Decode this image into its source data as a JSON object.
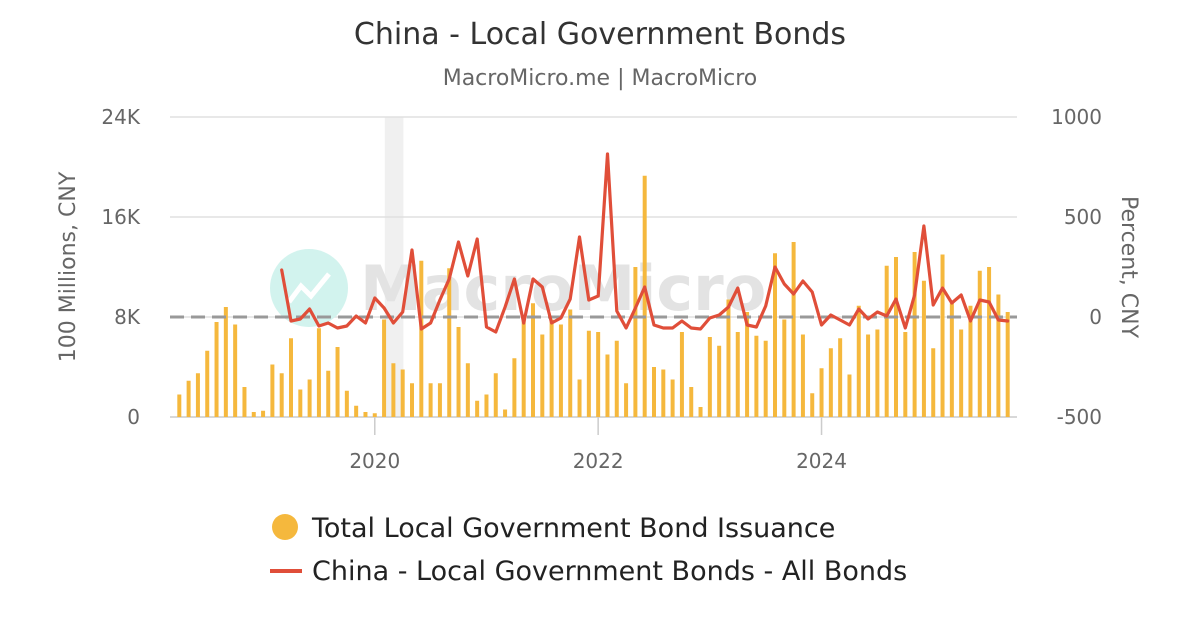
{
  "chart_data": {
    "type": "bar",
    "title": "China - Local Government Bonds",
    "subtitle": "MacroMicro.me | MacroMicro",
    "watermark": "MacroMicro",
    "xlabel": "",
    "ylabel_left": "100 Millions, CNY",
    "ylabel_right": "Percent, CNY",
    "ylim_left": [
      0,
      24000
    ],
    "ylim_right": [
      -500,
      1000
    ],
    "yticks_left": [
      0,
      8000,
      16000,
      24000
    ],
    "yticks_left_labels": [
      "0",
      "8K",
      "16K",
      "24K"
    ],
    "yticks_right": [
      -500,
      0,
      500,
      1000
    ],
    "yticks_right_labels": [
      "-500",
      "0",
      "500",
      "1000"
    ],
    "xlim": [
      "2018-03",
      "2025-10"
    ],
    "xticks": [
      "2020-01",
      "2022-01",
      "2024-01"
    ],
    "xtick_labels": [
      "2020",
      "2022",
      "2024"
    ],
    "grid": true,
    "legend_position": "bottom",
    "highlight_band": [
      "2020-01",
      "2020-03"
    ],
    "reference_line": {
      "axis": "right",
      "value": 0,
      "style": "dashed",
      "color": "#999999"
    },
    "colors": {
      "bars": "#f5b83d",
      "line": "#e04e39",
      "band": "#f0f0f0",
      "grid": "#e0e0e0"
    },
    "series": [
      {
        "name": "Total Local Government Bond Issuance",
        "type": "bar",
        "axis": "left",
        "x": [
          "2018-04",
          "2018-05",
          "2018-06",
          "2018-07",
          "2018-08",
          "2018-09",
          "2018-10",
          "2018-11",
          "2018-12",
          "2019-01",
          "2019-02",
          "2019-03",
          "2019-04",
          "2019-05",
          "2019-06",
          "2019-07",
          "2019-08",
          "2019-09",
          "2019-10",
          "2019-11",
          "2019-12",
          "2020-01",
          "2020-02",
          "2020-03",
          "2020-04",
          "2020-05",
          "2020-06",
          "2020-07",
          "2020-08",
          "2020-09",
          "2020-10",
          "2020-11",
          "2020-12",
          "2021-01",
          "2021-02",
          "2021-03",
          "2021-04",
          "2021-05",
          "2021-06",
          "2021-07",
          "2021-08",
          "2021-09",
          "2021-10",
          "2021-11",
          "2021-12",
          "2022-01",
          "2022-02",
          "2022-03",
          "2022-04",
          "2022-05",
          "2022-06",
          "2022-07",
          "2022-08",
          "2022-09",
          "2022-10",
          "2022-11",
          "2022-12",
          "2023-01",
          "2023-02",
          "2023-03",
          "2023-04",
          "2023-05",
          "2023-06",
          "2023-07",
          "2023-08",
          "2023-09",
          "2023-10",
          "2023-11",
          "2023-12",
          "2024-01",
          "2024-02",
          "2024-03",
          "2024-04",
          "2024-05",
          "2024-06",
          "2024-07",
          "2024-08",
          "2024-09",
          "2024-10",
          "2024-11",
          "2024-12",
          "2025-01",
          "2025-02",
          "2025-03",
          "2025-04",
          "2025-05",
          "2025-06",
          "2025-07",
          "2025-08",
          "2025-09"
        ],
        "values": [
          1800,
          2900,
          3500,
          5300,
          7600,
          8800,
          7400,
          2400,
          400,
          500,
          4200,
          3500,
          6300,
          2200,
          3000,
          7100,
          3700,
          5600,
          2100,
          900,
          400,
          300,
          7800,
          4300,
          3800,
          2700,
          12500,
          2700,
          2700,
          11900,
          7200,
          4300,
          1300,
          1800,
          3500,
          600,
          4700,
          7900,
          9100,
          6600,
          7800,
          7400,
          8600,
          3000,
          6900,
          6800,
          5000,
          6100,
          2700,
          12000,
          19300,
          4000,
          3800,
          3000,
          6800,
          2400,
          800,
          6400,
          5700,
          9400,
          6800,
          8400,
          6500,
          6100,
          13100,
          7800,
          14000,
          6600,
          1900,
          3900,
          5500,
          6300,
          3400,
          8900,
          6600,
          7000,
          12100,
          12800,
          6800,
          13200,
          10900,
          5500,
          13000,
          9100,
          7000,
          8900,
          11700,
          12000,
          9800,
          8400
        ]
      },
      {
        "name": "China - Local Government Bonds - All Bonds",
        "type": "line",
        "axis": "right",
        "x": [
          "2019-03",
          "2019-04",
          "2019-05",
          "2019-06",
          "2019-07",
          "2019-08",
          "2019-09",
          "2019-10",
          "2019-11",
          "2019-12",
          "2020-01",
          "2020-02",
          "2020-03",
          "2020-04",
          "2020-05",
          "2020-06",
          "2020-07",
          "2020-08",
          "2020-09",
          "2020-10",
          "2020-11",
          "2020-12",
          "2021-01",
          "2021-02",
          "2021-03",
          "2021-04",
          "2021-05",
          "2021-06",
          "2021-07",
          "2021-08",
          "2021-09",
          "2021-10",
          "2021-11",
          "2021-12",
          "2022-01",
          "2022-02",
          "2022-03",
          "2022-04",
          "2022-05",
          "2022-06",
          "2022-07",
          "2022-08",
          "2022-09",
          "2022-10",
          "2022-11",
          "2022-12",
          "2023-01",
          "2023-02",
          "2023-03",
          "2023-04",
          "2023-05",
          "2023-06",
          "2023-07",
          "2023-08",
          "2023-09",
          "2023-10",
          "2023-11",
          "2023-12",
          "2024-01",
          "2024-02",
          "2024-03",
          "2024-04",
          "2024-05",
          "2024-06",
          "2024-07",
          "2024-08",
          "2024-09",
          "2024-10",
          "2024-11",
          "2024-12",
          "2025-01",
          "2025-02",
          "2025-03",
          "2025-04",
          "2025-05",
          "2025-06",
          "2025-07",
          "2025-08",
          "2025-09"
        ],
        "values": [
          235,
          -20,
          -10,
          40,
          -45,
          -30,
          -55,
          -45,
          5,
          -30,
          95,
          45,
          -30,
          25,
          335,
          -60,
          -30,
          85,
          190,
          375,
          205,
          390,
          -50,
          -75,
          50,
          190,
          -30,
          190,
          150,
          -30,
          -5,
          90,
          400,
          85,
          105,
          815,
          30,
          -55,
          45,
          150,
          -40,
          -55,
          -55,
          -20,
          -55,
          -60,
          -5,
          10,
          50,
          145,
          -40,
          -50,
          55,
          250,
          165,
          115,
          180,
          125,
          -40,
          10,
          -15,
          -40,
          40,
          -10,
          25,
          5,
          90,
          -55,
          110,
          455,
          60,
          145,
          70,
          110,
          -20,
          85,
          75,
          -15,
          -20
        ]
      }
    ]
  }
}
